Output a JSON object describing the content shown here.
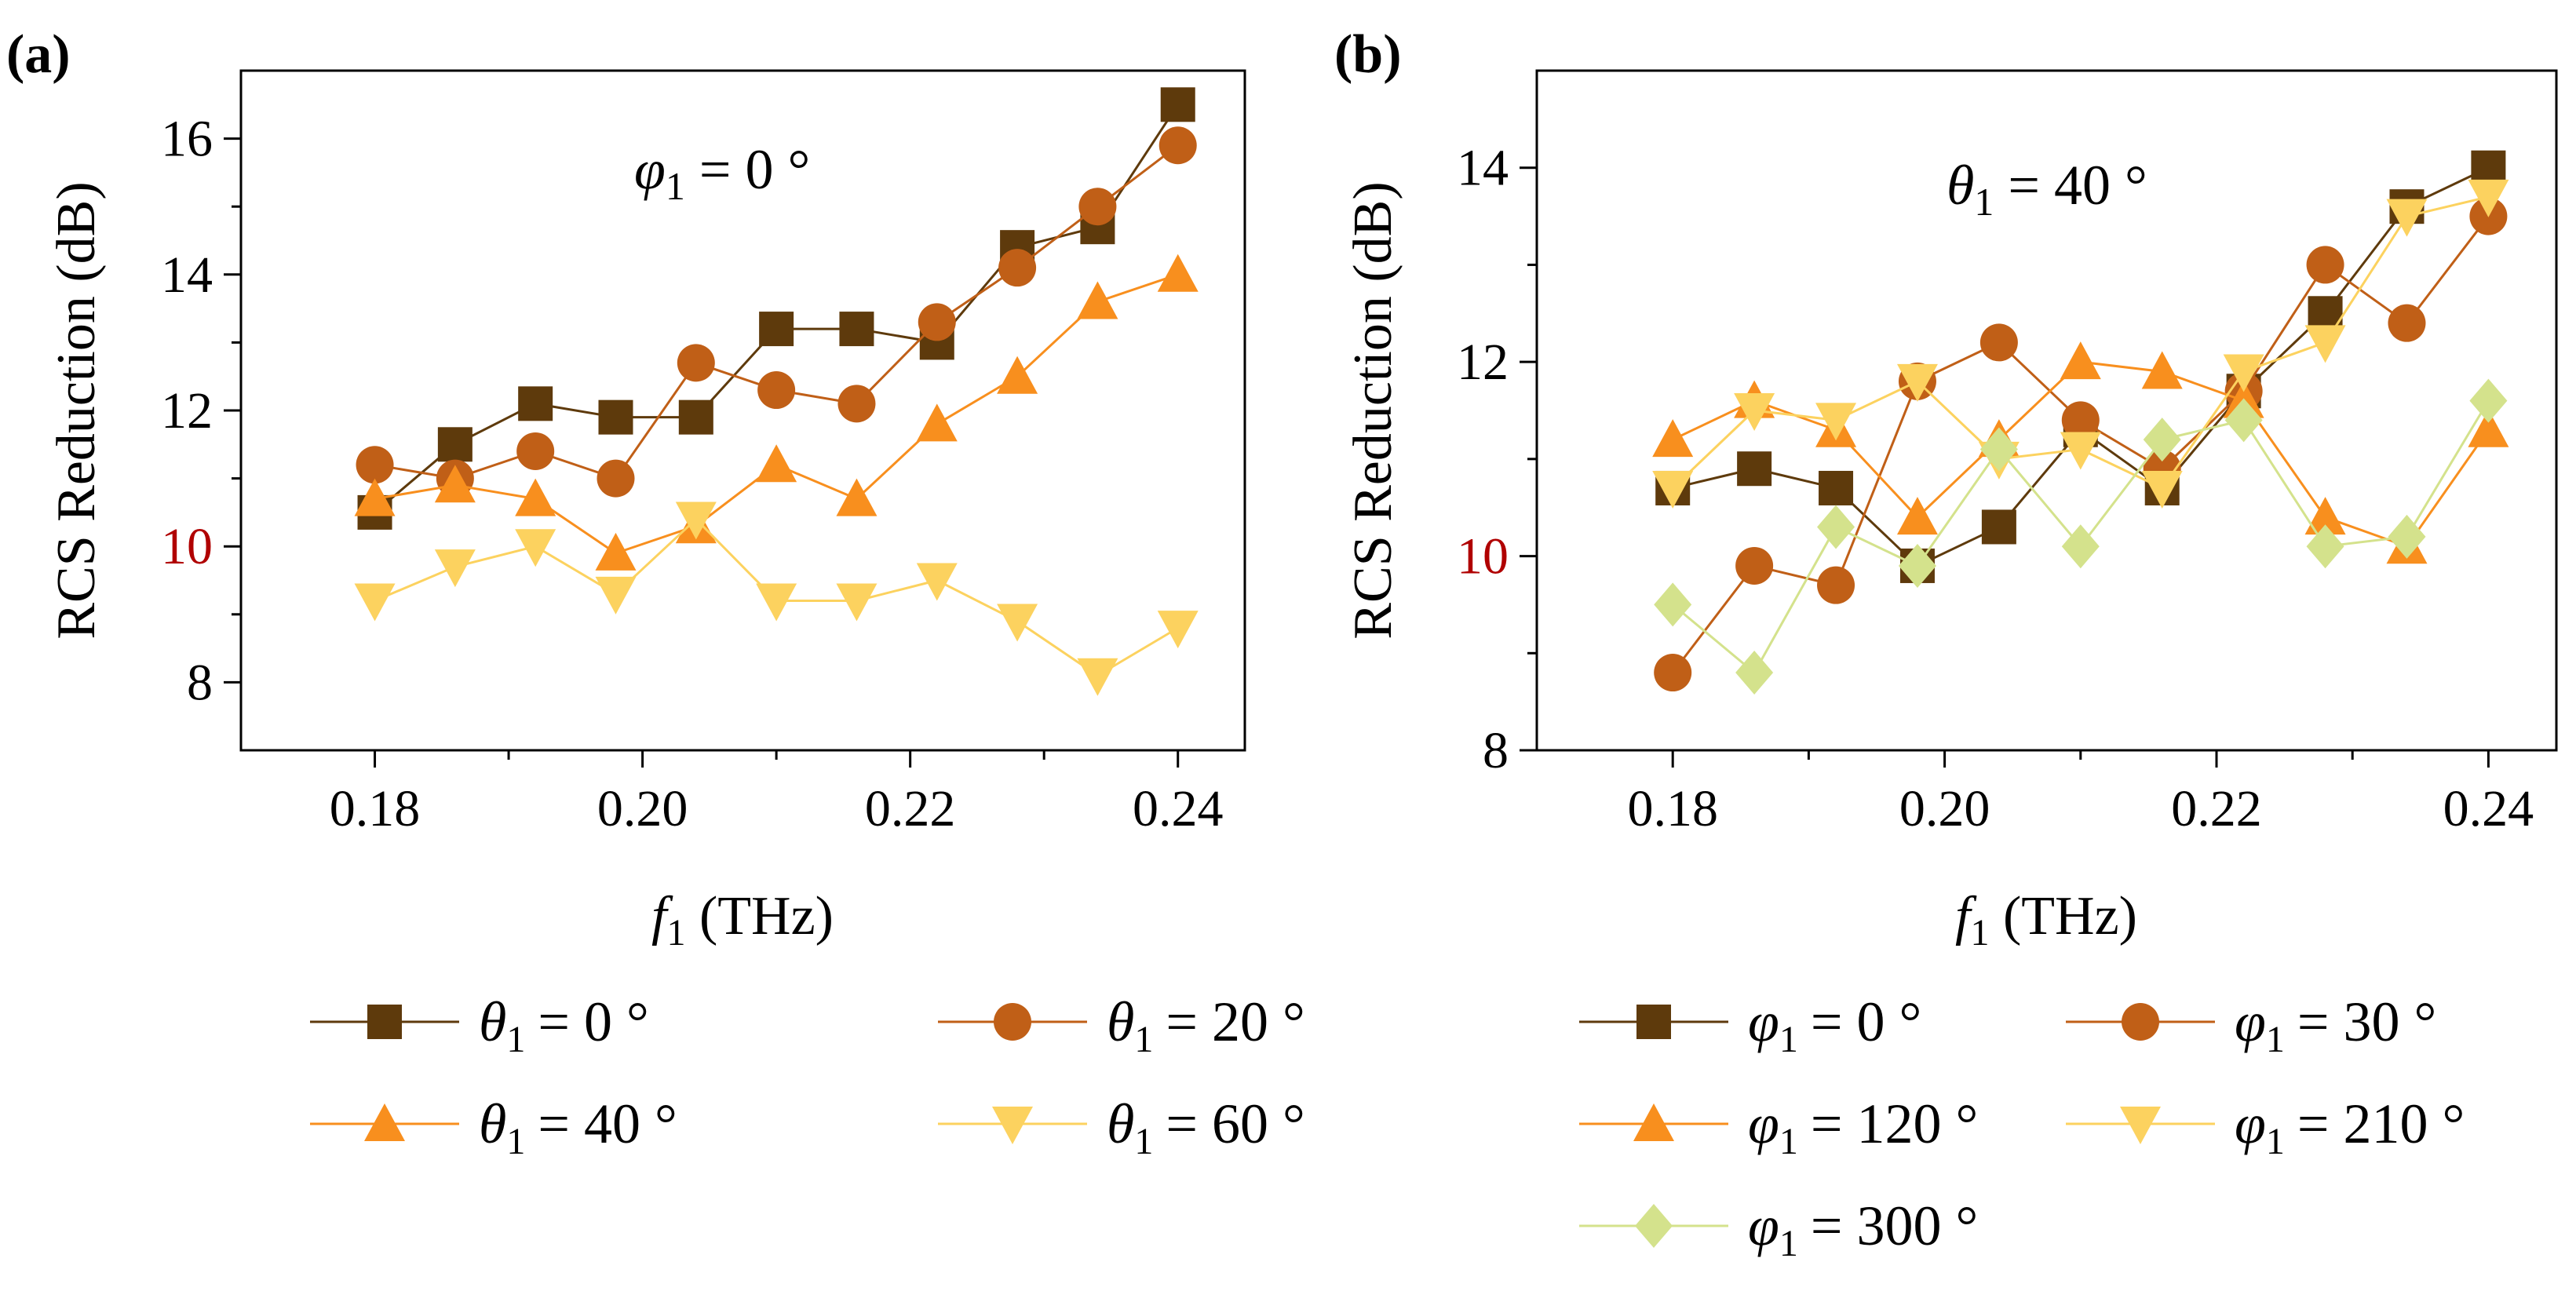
{
  "chart_data": [
    {
      "type": "line",
      "panel_label": "(a)",
      "annotation": {
        "symbol": "φ",
        "sub": "1",
        "text": " = 0 °"
      },
      "xlabel": {
        "symbol": "f",
        "sub": "1",
        "text": " (THz)"
      },
      "ylabel": "RCS Reduction (dB)",
      "xlim": [
        0.17,
        0.245
      ],
      "ylim": [
        7,
        17
      ],
      "xticks": [
        0.18,
        0.2,
        0.22,
        0.24
      ],
      "xtick_labels": [
        "0.18",
        "0.20",
        "0.22",
        "0.24"
      ],
      "yticks": [
        8,
        10,
        12,
        14,
        16
      ],
      "ytick_labels": [
        "8",
        "10",
        "12",
        "14",
        "16"
      ],
      "highlight_ytick": "10",
      "highlight_color": "#b00000",
      "grid": false,
      "legend_position": "bottom",
      "x": [
        0.18,
        0.186,
        0.192,
        0.198,
        0.204,
        0.21,
        0.216,
        0.222,
        0.228,
        0.234,
        0.24
      ],
      "series": [
        {
          "name": "= 0 °",
          "legend_symbol": "θ",
          "legend_sub": "1",
          "marker": "square",
          "color": "#5e3a0c",
          "values": [
            10.5,
            11.5,
            12.1,
            11.9,
            11.9,
            13.2,
            13.2,
            13.0,
            14.4,
            14.7,
            16.5
          ]
        },
        {
          "name": "= 20 °",
          "legend_symbol": "θ",
          "legend_sub": "1",
          "marker": "circle",
          "color": "#c05f17",
          "values": [
            11.2,
            11.0,
            11.4,
            11.0,
            12.7,
            12.3,
            12.1,
            13.3,
            14.1,
            15.0,
            15.9
          ]
        },
        {
          "name": "= 40 °",
          "legend_symbol": "θ",
          "legend_sub": "1",
          "marker": "triangle-up",
          "color": "#f88f1e",
          "values": [
            10.7,
            10.9,
            10.7,
            9.9,
            10.3,
            11.2,
            10.7,
            11.8,
            12.5,
            13.6,
            14.0
          ]
        },
        {
          "name": "= 60 °",
          "legend_symbol": "θ",
          "legend_sub": "1",
          "marker": "triangle-down",
          "color": "#fcd25f",
          "values": [
            9.2,
            9.7,
            10.0,
            9.3,
            10.4,
            9.2,
            9.2,
            9.5,
            8.9,
            8.1,
            8.8
          ]
        }
      ]
    },
    {
      "type": "line",
      "panel_label": "(b)",
      "annotation": {
        "symbol": "θ",
        "sub": "1",
        "text": " = 40 °"
      },
      "xlabel": {
        "symbol": "f",
        "sub": "1",
        "text": " (THz)"
      },
      "ylabel": "RCS Reduction (dB)",
      "xlim": [
        0.17,
        0.245
      ],
      "ylim": [
        8,
        15
      ],
      "xticks": [
        0.18,
        0.2,
        0.22,
        0.24
      ],
      "xtick_labels": [
        "0.18",
        "0.20",
        "0.22",
        "0.24"
      ],
      "yticks": [
        8,
        10,
        12,
        14
      ],
      "ytick_labels": [
        "8",
        "10",
        "12",
        "14"
      ],
      "highlight_ytick": "10",
      "highlight_color": "#b00000",
      "grid": false,
      "legend_position": "bottom",
      "x": [
        0.18,
        0.186,
        0.192,
        0.198,
        0.204,
        0.21,
        0.216,
        0.222,
        0.228,
        0.234,
        0.24
      ],
      "series": [
        {
          "name": "= 0 °",
          "legend_symbol": "φ",
          "legend_sub": "1",
          "marker": "square",
          "color": "#5e3a0c",
          "values": [
            10.7,
            10.9,
            10.7,
            9.9,
            10.3,
            11.3,
            10.7,
            11.7,
            12.5,
            13.6,
            14.0
          ]
        },
        {
          "name": "= 30 °",
          "legend_symbol": "φ",
          "legend_sub": "1",
          "marker": "circle",
          "color": "#c05f17",
          "values": [
            8.8,
            9.9,
            9.7,
            11.8,
            12.2,
            11.4,
            10.9,
            11.7,
            13.0,
            12.4,
            13.5
          ]
        },
        {
          "name": "= 120 °",
          "legend_symbol": "φ",
          "legend_sub": "1",
          "marker": "triangle-up",
          "color": "#f88f1e",
          "values": [
            11.2,
            11.6,
            11.3,
            10.4,
            11.2,
            12.0,
            11.9,
            11.6,
            10.4,
            10.1,
            11.3
          ]
        },
        {
          "name": "= 210 °",
          "legend_symbol": "φ",
          "legend_sub": "1",
          "marker": "triangle-down",
          "color": "#fcd25f",
          "values": [
            10.7,
            11.5,
            11.4,
            11.8,
            11.0,
            11.1,
            10.7,
            11.9,
            12.2,
            13.5,
            13.7
          ]
        },
        {
          "name": "= 300 °",
          "legend_symbol": "φ",
          "legend_sub": "1",
          "marker": "diamond",
          "color": "#d4e28c",
          "values": [
            9.5,
            8.8,
            10.3,
            9.9,
            11.1,
            10.1,
            11.2,
            11.4,
            10.1,
            10.2,
            11.6
          ]
        }
      ]
    }
  ]
}
